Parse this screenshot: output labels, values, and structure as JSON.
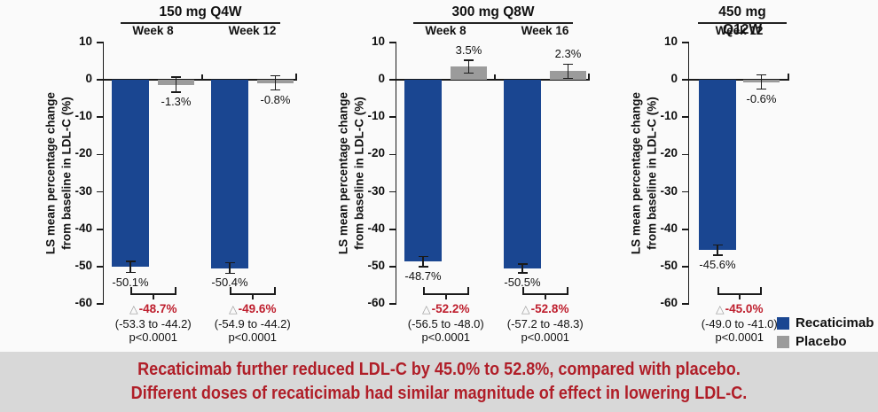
{
  "figure": {
    "background": "#FAFAFA",
    "ylabel_line1": "LS mean percentage change",
    "ylabel_line2": "from baseline in LDL-C (%)"
  },
  "colors": {
    "recaticimab": "#1A4691",
    "placebo": "#9B9B9B",
    "axis": "#1A1A1A",
    "delta_red": "#BE1E2D",
    "banner_bg": "#D8D8D8",
    "banner_text": "#B01E28"
  },
  "legend": {
    "items": [
      {
        "label": "Recaticimab",
        "color_key": "recaticimab"
      },
      {
        "label": "Placebo",
        "color_key": "placebo"
      }
    ]
  },
  "banner": {
    "line1": "Recaticimab further reduced LDL-C by 45.0% to 52.8%, compared with placebo.",
    "line2": "Different doses of recaticimab had similar magnitude of effect in lowering LDL-C."
  },
  "chart_data": {
    "type": "bar",
    "ylabel": "LS mean percentage change from baseline in LDL-C (%)",
    "ylim": [
      -60,
      10
    ],
    "yticks": [
      10,
      0,
      -10,
      -20,
      -30,
      -40,
      -50,
      -60
    ],
    "grid": false,
    "legend_position": "bottom-right",
    "series_names": [
      "Recaticimab",
      "Placebo"
    ],
    "panels": [
      {
        "title": "150 mg Q4W",
        "groups": [
          {
            "week": "Week 8",
            "recaticimab": {
              "value": -50.1,
              "label": "-50.1%",
              "err": 1.5
            },
            "placebo": {
              "value": -1.3,
              "label": "-1.3%",
              "err": 2.0
            },
            "difference": {
              "delta_label": "-48.7%",
              "ci": "(-53.3 to -44.2)",
              "p": "p<0.0001"
            }
          },
          {
            "week": "Week 12",
            "recaticimab": {
              "value": -50.4,
              "label": "-50.4%",
              "err": 1.4
            },
            "placebo": {
              "value": -0.8,
              "label": "-0.8%",
              "err": 1.9
            },
            "difference": {
              "delta_label": "-49.6%",
              "ci": "(-54.9 to -44.2)",
              "p": "p<0.0001"
            }
          }
        ]
      },
      {
        "title": "300 mg Q8W",
        "groups": [
          {
            "week": "Week 8",
            "recaticimab": {
              "value": -48.7,
              "label": "-48.7%",
              "err": 1.4
            },
            "placebo": {
              "value": 3.5,
              "label": "3.5%",
              "err": 1.7
            },
            "difference": {
              "delta_label": "-52.2%",
              "ci": "(-56.5 to -48.0)",
              "p": "p<0.0001"
            }
          },
          {
            "week": "Week 16",
            "recaticimab": {
              "value": -50.5,
              "label": "-50.5%",
              "err": 1.2
            },
            "placebo": {
              "value": 2.3,
              "label": "2.3%",
              "err": 1.9
            },
            "difference": {
              "delta_label": "-52.8%",
              "ci": "(-57.2 to -48.3)",
              "p": "p<0.0001"
            }
          }
        ]
      },
      {
        "title": "450 mg Q12W",
        "groups": [
          {
            "week": "Week 12",
            "recaticimab": {
              "value": -45.6,
              "label": "-45.6%",
              "err": 1.4
            },
            "placebo": {
              "value": -0.6,
              "label": "-0.6%",
              "err": 1.9
            },
            "difference": {
              "delta_label": "-45.0%",
              "ci": "(-49.0 to -41.0)",
              "p": "p<0.0001"
            }
          }
        ]
      }
    ]
  }
}
